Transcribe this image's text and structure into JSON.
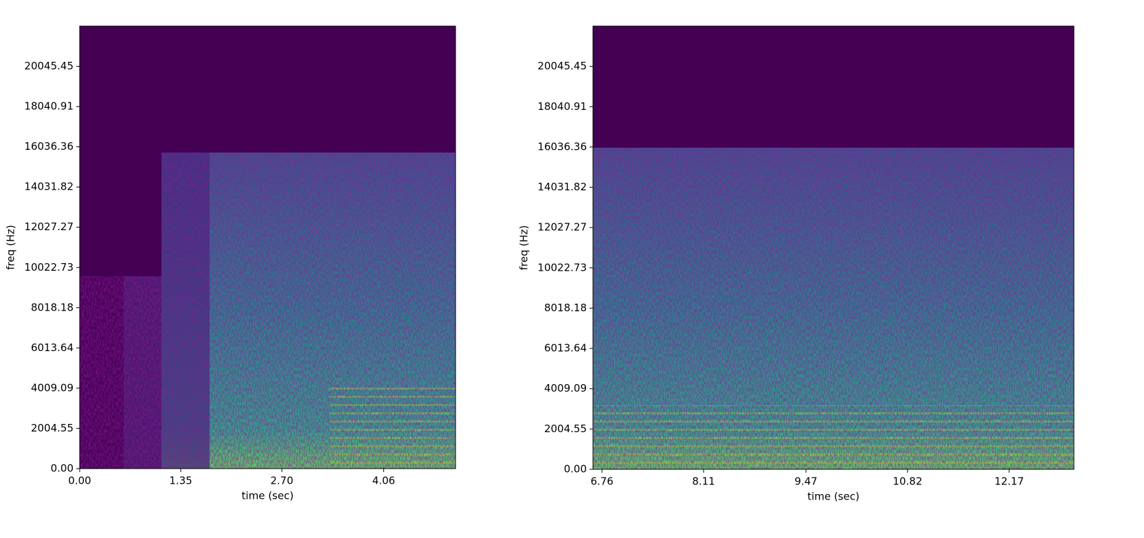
{
  "chart_data": [
    {
      "type": "spectrogram",
      "xlabel": "time (sec)",
      "ylabel": "freq (Hz)",
      "xlim": [
        0,
        5.02
      ],
      "ylim": [
        0,
        22050
      ],
      "xticks": [
        {
          "value": 0,
          "label": "0.00"
        },
        1.35,
        {
          "value": 2.7,
          "label": "2.70"
        },
        4.06
      ],
      "yticks": [
        {
          "value": 0,
          "label": "0.00"
        },
        2004.55,
        4009.09,
        6013.64,
        8018.18,
        10022.73,
        12027.27,
        14031.82,
        16036.36,
        18040.91,
        20045.45
      ]
    },
    {
      "type": "spectrogram",
      "xlabel": "time (sec)",
      "ylabel": "freq (Hz)",
      "xlim": [
        6.64,
        13.03
      ],
      "ylim": [
        0,
        22050
      ],
      "xticks": [
        6.76,
        8.11,
        9.47,
        10.82,
        12.17
      ],
      "yticks": [
        {
          "value": 0,
          "label": "0.00"
        },
        2004.55,
        4009.09,
        6013.64,
        8018.18,
        10022.73,
        12027.27,
        14031.82,
        16036.36,
        18040.91,
        20045.45
      ]
    }
  ]
}
